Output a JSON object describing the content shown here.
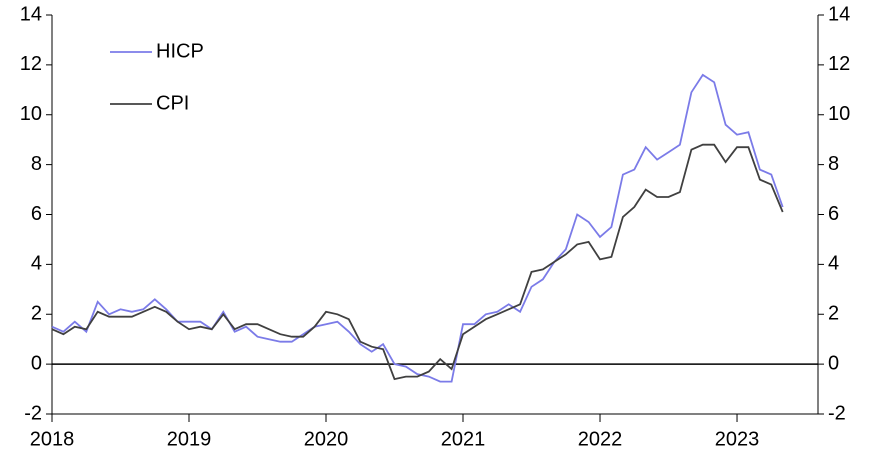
{
  "chart_data": {
    "type": "line",
    "categories": [
      "2018",
      null,
      null,
      null,
      null,
      null,
      null,
      null,
      null,
      null,
      null,
      null,
      "2019",
      null,
      null,
      null,
      null,
      null,
      null,
      null,
      null,
      null,
      null,
      null,
      "2020",
      null,
      null,
      null,
      null,
      null,
      null,
      null,
      null,
      null,
      null,
      null,
      "2021",
      null,
      null,
      null,
      null,
      null,
      null,
      null,
      null,
      null,
      null,
      null,
      "2022",
      null,
      null,
      null,
      null,
      null,
      null,
      null,
      null,
      null,
      null,
      null,
      "2023",
      null,
      null,
      null,
      null
    ],
    "series": [
      {
        "name": "HICP",
        "color": "#7b7be8",
        "values": [
          1.5,
          1.3,
          1.7,
          1.3,
          2.5,
          2.0,
          2.2,
          2.1,
          2.2,
          2.6,
          2.2,
          1.7,
          1.7,
          1.7,
          1.4,
          2.1,
          1.3,
          1.5,
          1.1,
          1.0,
          0.9,
          0.9,
          1.2,
          1.5,
          1.6,
          1.7,
          1.3,
          0.8,
          0.5,
          0.8,
          0.0,
          -0.1,
          -0.4,
          -0.5,
          -0.7,
          -0.7,
          1.6,
          1.6,
          2.0,
          2.1,
          2.4,
          2.1,
          3.1,
          3.4,
          4.1,
          4.6,
          6.0,
          5.7,
          5.1,
          5.5,
          7.6,
          7.8,
          8.7,
          8.2,
          8.5,
          8.8,
          10.9,
          11.6,
          11.3,
          9.6,
          9.2,
          9.3,
          7.8,
          7.6,
          6.3
        ]
      },
      {
        "name": "CPI",
        "color": "#404040",
        "values": [
          1.4,
          1.2,
          1.5,
          1.4,
          2.1,
          1.9,
          1.9,
          1.9,
          2.1,
          2.3,
          2.1,
          1.7,
          1.4,
          1.5,
          1.4,
          2.0,
          1.4,
          1.6,
          1.6,
          1.4,
          1.2,
          1.1,
          1.1,
          1.5,
          2.1,
          2.0,
          1.8,
          0.9,
          0.7,
          0.6,
          -0.6,
          -0.5,
          -0.5,
          -0.3,
          0.2,
          -0.2,
          1.2,
          1.5,
          1.8,
          2.0,
          2.2,
          2.4,
          3.7,
          3.8,
          4.1,
          4.4,
          4.8,
          4.9,
          4.2,
          4.3,
          5.9,
          6.3,
          7.0,
          6.7,
          6.7,
          6.9,
          8.6,
          8.8,
          8.8,
          8.1,
          8.7,
          8.7,
          7.4,
          7.2,
          6.1
        ]
      }
    ],
    "ylim": [
      -2,
      14
    ],
    "yticks": [
      -2,
      0,
      2,
      4,
      6,
      8,
      10,
      12,
      14
    ],
    "y2lim": [
      -2,
      14
    ],
    "y2ticks": [
      -2,
      0,
      2,
      4,
      6,
      8,
      10,
      12,
      14
    ],
    "zero_line": true,
    "grid": false,
    "legend": "upper left"
  }
}
